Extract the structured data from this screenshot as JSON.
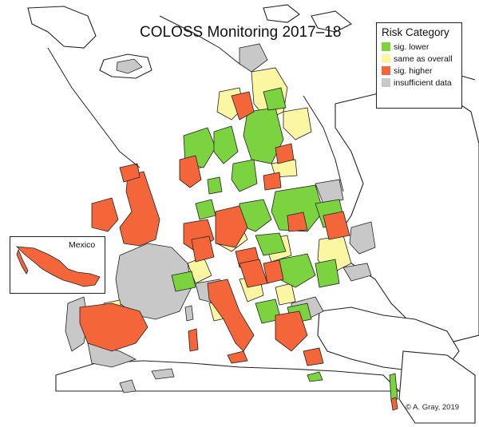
{
  "map": {
    "title": "COLOSS Monitoring 2017–18",
    "legend": {
      "title": "Risk Category",
      "items": [
        {
          "label": "sig. lower",
          "color": "#7ad33f"
        },
        {
          "label": "same as overall",
          "color": "#fbf6a2"
        },
        {
          "label": "sig. higher",
          "color": "#f4663a"
        },
        {
          "label": "insufficient data",
          "color": "#c8c8c8"
        }
      ]
    },
    "inset": {
      "label": "Mexico"
    },
    "credit": "© A. Gray, 2019",
    "colors": {
      "lower": "#7ad33f",
      "same": "#fbf6a2",
      "higher": "#f4663a",
      "nodata": "#c8c8c8",
      "background": "#ffffff",
      "border": "#222222"
    }
  }
}
